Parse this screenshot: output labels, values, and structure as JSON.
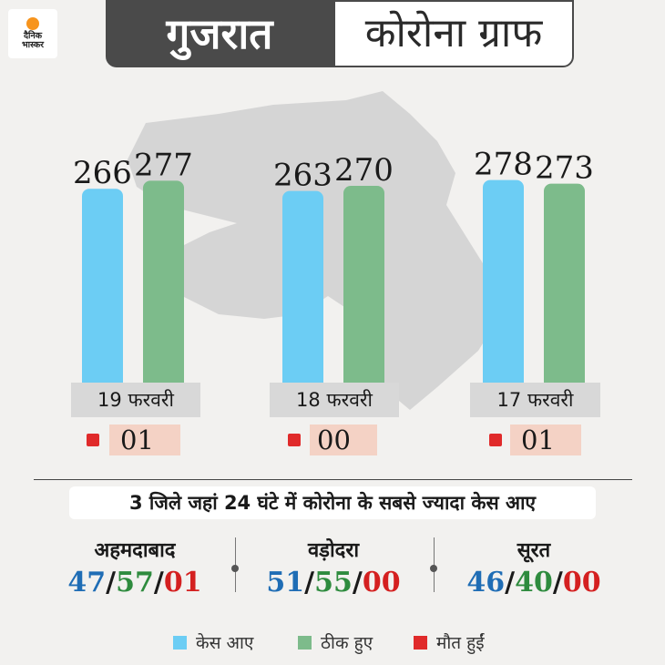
{
  "logo": {
    "text": "दैनिक\nभास्कर"
  },
  "header": {
    "state": "गुजरात",
    "title": "कोरोना ग्राफ"
  },
  "colors": {
    "cases": "#6ccdf4",
    "recovered": "#7dbb8b",
    "deaths": "#e02a2a",
    "blue_text": "#1f6db5",
    "green_text": "#2e8b3e",
    "red_text": "#d42020"
  },
  "chart_data": {
    "type": "bar",
    "categories": [
      "19 फरवरी",
      "18 फरवरी",
      "17 फरवरी"
    ],
    "series": [
      {
        "name": "केस आए",
        "values": [
          266,
          263,
          278
        ]
      },
      {
        "name": "ठीक हुए",
        "values": [
          277,
          270,
          273
        ]
      },
      {
        "name": "मौत हुईं",
        "values": [
          "01",
          "00",
          "01"
        ]
      }
    ],
    "ylim": [
      0,
      290
    ],
    "legend_position": "bottom"
  },
  "districts_title": "3 जिले जहां 24 घंटे में कोरोना के सबसे ज्यादा केस आए",
  "districts": [
    {
      "name": "अहमदाबाद",
      "cases": "47",
      "recovered": "57",
      "deaths": "01"
    },
    {
      "name": "वड़ोदरा",
      "cases": "51",
      "recovered": "55",
      "deaths": "00"
    },
    {
      "name": "सूरत",
      "cases": "46",
      "recovered": "40",
      "deaths": "00"
    }
  ],
  "legend": {
    "cases": "केस आए",
    "recovered": "ठीक हुए",
    "deaths": "मौत हुईं"
  },
  "separator": "/"
}
